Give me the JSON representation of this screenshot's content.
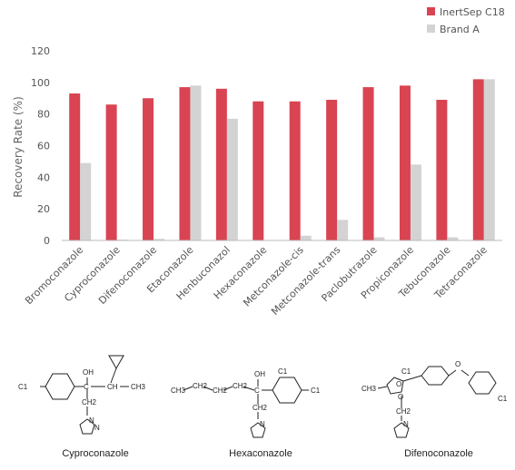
{
  "chart_data": {
    "type": "bar",
    "title": "",
    "xlabel": "",
    "ylabel": "Recovery Rate (%)",
    "ylim": [
      0,
      120
    ],
    "yticks": [
      0,
      20,
      40,
      60,
      80,
      100,
      120
    ],
    "grid": false,
    "legend_position": "top-right",
    "categories": [
      "Bromoconazole",
      "Cyproconazole",
      "Difenoconazole",
      "Etaconazole",
      "Henbuconazol",
      "Hexaconazole",
      "Metconazole-cis",
      "Metconazole-trans",
      "Paclobutrazole",
      "Propiconazole",
      "Tebuconazole",
      "Tetraconazole"
    ],
    "series": [
      {
        "name": "InertSep C18",
        "color": "#d94452",
        "values": [
          93,
          86,
          90,
          97,
          96,
          88,
          88,
          89,
          97,
          98,
          89,
          102
        ]
      },
      {
        "name": "Brand A",
        "color": "#d3d3d3",
        "values": [
          49,
          0.5,
          1,
          98,
          77,
          0,
          3,
          13,
          2,
          48,
          2,
          102
        ]
      }
    ]
  },
  "structures": [
    {
      "name": "Cyproconazole"
    },
    {
      "name": "Hexaconazole"
    },
    {
      "name": "Difenoconazole"
    }
  ]
}
